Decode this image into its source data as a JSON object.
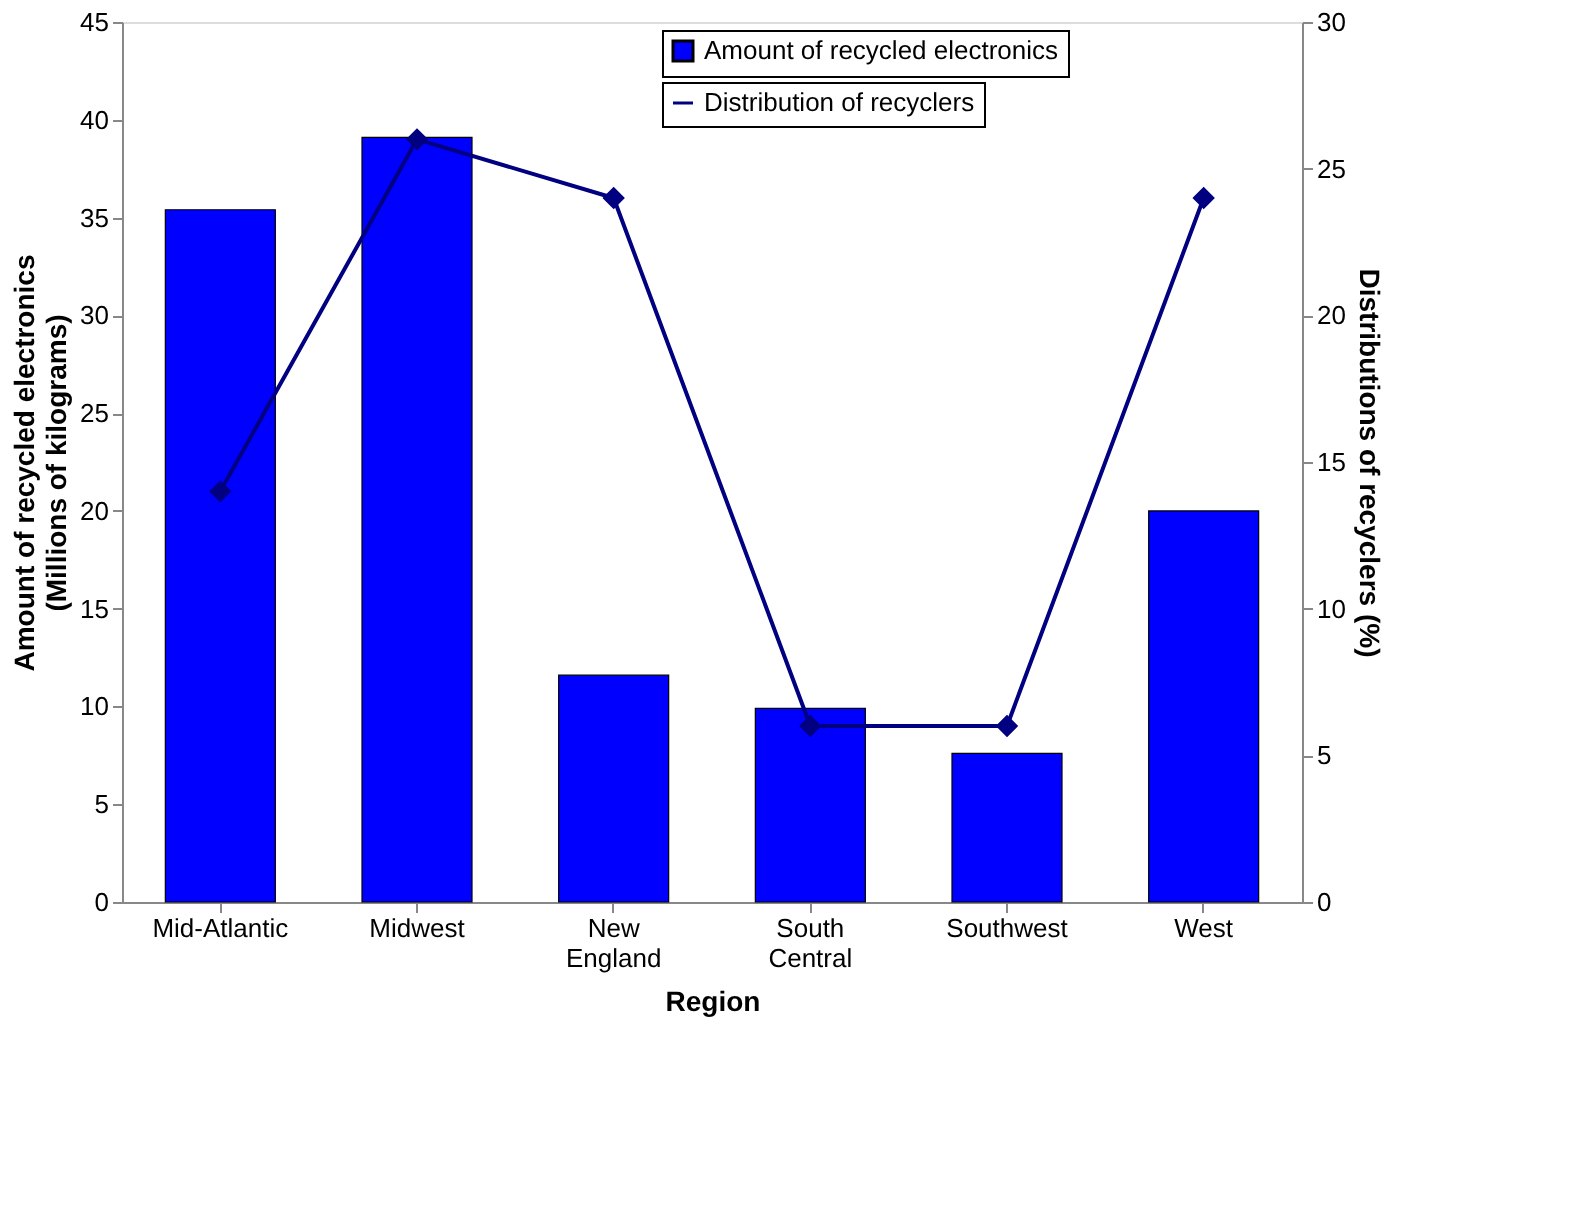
{
  "chart_data": {
    "type": "bar",
    "xlabel": "Region",
    "ylabel": "Amount of recycled electronics (Millions of kilograms)",
    "y2label": "Distributions of recyclers (%)",
    "categories": [
      "Mid-Atlantic",
      "Midwest",
      "New England",
      "South Central",
      "Southwest",
      "West"
    ],
    "series": [
      {
        "name": "Amount of recycled electronics",
        "color": "#0000ff",
        "values": [
          35.4,
          39.1,
          11.6,
          9.9,
          7.6,
          20.0
        ]
      },
      {
        "name": "Distribution of recyclers",
        "type": "line",
        "axis": "y2",
        "color": "#000080",
        "marker": "diamond",
        "values": [
          14,
          26,
          24,
          6,
          6,
          24
        ]
      }
    ],
    "ylim": [
      0,
      45
    ],
    "yticks": [
      0,
      5,
      10,
      15,
      20,
      25,
      30,
      35,
      40,
      45
    ],
    "y2lim": [
      0,
      30
    ],
    "y2ticks": [
      0,
      5,
      10,
      15,
      20,
      25,
      30
    ],
    "grid": false,
    "legend": "top right"
  }
}
